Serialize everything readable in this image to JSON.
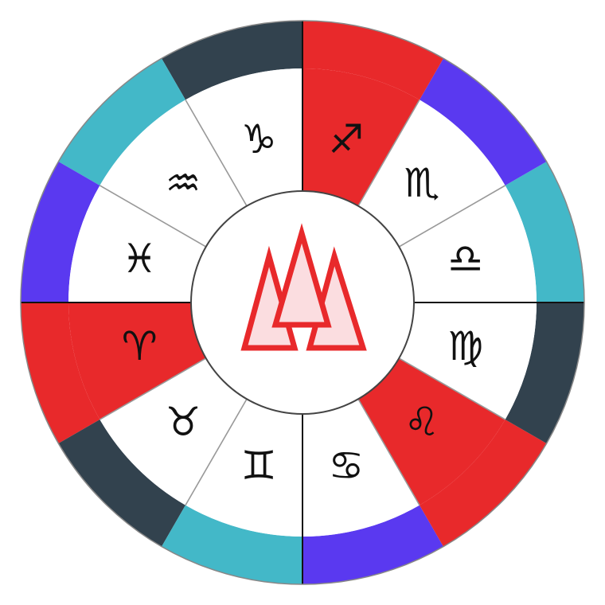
{
  "colors": {
    "fire": "#e8292b",
    "earth": "#32424e",
    "air": "#43b8c8",
    "water": "#5a39f0",
    "sector_bg": "#ffffff",
    "divider": "#999999",
    "axis": "#111111",
    "center_border": "#444444",
    "emblem_fill": "#fbdde0",
    "emblem_stroke": "#e8292b"
  },
  "center_emblem": {
    "icon": "fire-triangles-icon"
  },
  "signs": [
    {
      "key": "aries",
      "glyph": "♈",
      "element": "fire"
    },
    {
      "key": "taurus",
      "glyph": "♉",
      "element": "earth"
    },
    {
      "key": "gemini",
      "glyph": "♊",
      "element": "air"
    },
    {
      "key": "cancer",
      "glyph": "♋",
      "element": "water"
    },
    {
      "key": "leo",
      "glyph": "♌",
      "element": "fire"
    },
    {
      "key": "virgo",
      "glyph": "♍",
      "element": "earth"
    },
    {
      "key": "libra",
      "glyph": "♎",
      "element": "air"
    },
    {
      "key": "scorpio",
      "glyph": "♏",
      "element": "water"
    },
    {
      "key": "sagittarius",
      "glyph": "♐",
      "element": "fire"
    },
    {
      "key": "capricorn",
      "glyph": "♑",
      "element": "earth"
    },
    {
      "key": "aquarius",
      "glyph": "♒",
      "element": "air"
    },
    {
      "key": "pisces",
      "glyph": "♓",
      "element": "water"
    }
  ]
}
